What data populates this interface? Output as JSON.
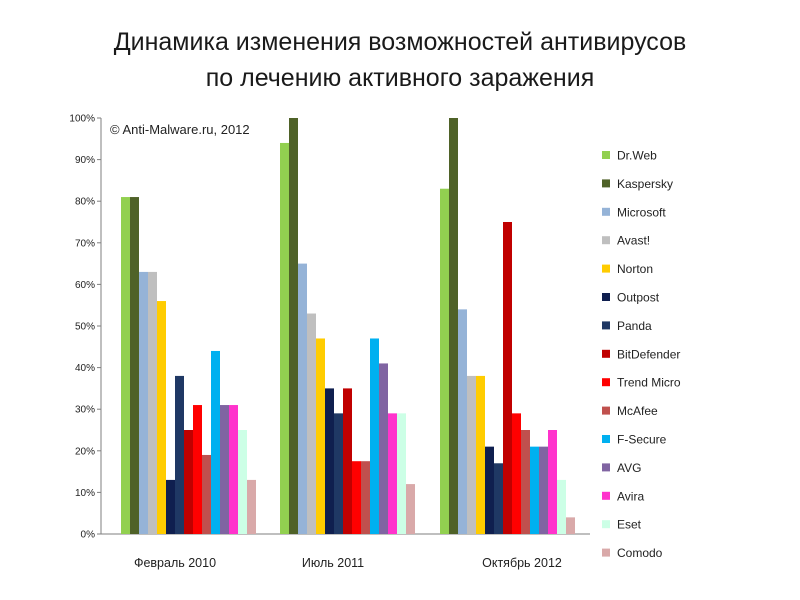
{
  "title": {
    "line1": "Динамика изменения возможностей антивирусов",
    "line2": "по лечению активного заражения"
  },
  "chart_data": {
    "type": "bar",
    "watermark": "© Anti-Malware.ru,  2012",
    "categories": [
      "Февраль 2010",
      "Июль 2011",
      "Октябрь 2012"
    ],
    "yticks": [
      "0%",
      "10%",
      "20%",
      "30%",
      "40%",
      "50%",
      "60%",
      "70%",
      "80%",
      "90%",
      "100%"
    ],
    "ylim": [
      0,
      100
    ],
    "legend_position": "right",
    "grid": false,
    "series": [
      {
        "name": "Dr.Web",
        "color": "#92d050",
        "values": [
          81,
          94,
          83
        ]
      },
      {
        "name": "Kaspersky",
        "color": "#4f6228",
        "values": [
          81,
          100,
          100
        ]
      },
      {
        "name": "Microsoft",
        "color": "#95b3d7",
        "values": [
          63,
          65,
          54
        ]
      },
      {
        "name": "Avast!",
        "color": "#bfbfbf",
        "values": [
          63,
          53,
          38
        ]
      },
      {
        "name": "Norton",
        "color": "#ffcc00",
        "values": [
          56,
          47,
          38
        ]
      },
      {
        "name": "Outpost",
        "color": "#0f1f4f",
        "values": [
          13,
          35,
          21
        ]
      },
      {
        "name": "Panda",
        "color": "#1f3864",
        "values": [
          38,
          29,
          17
        ]
      },
      {
        "name": "BitDefender",
        "color": "#c00000",
        "values": [
          25,
          35,
          75
        ]
      },
      {
        "name": "Trend Micro",
        "color": "#ff0000",
        "values": [
          31,
          17.5,
          29
        ]
      },
      {
        "name": "McAfee",
        "color": "#c0504d",
        "values": [
          19,
          17.5,
          25
        ]
      },
      {
        "name": "F-Secure",
        "color": "#00b0f0",
        "values": [
          44,
          47,
          21
        ]
      },
      {
        "name": "AVG",
        "color": "#8064a2",
        "values": [
          31,
          41,
          21
        ]
      },
      {
        "name": "Avira",
        "color": "#ff33cc",
        "values": [
          31,
          29,
          25
        ]
      },
      {
        "name": "Eset",
        "color": "#ccffe6",
        "values": [
          25,
          29,
          13
        ]
      },
      {
        "name": "Comodo",
        "color": "#d9a9a9",
        "values": [
          13,
          12,
          4
        ]
      }
    ]
  }
}
